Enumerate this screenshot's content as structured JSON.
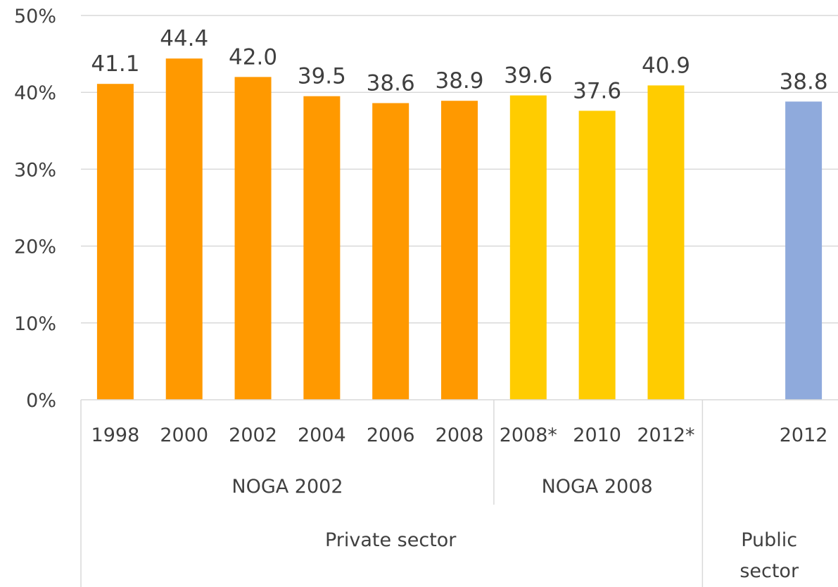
{
  "chart_data": {
    "type": "bar",
    "ylim": [
      0,
      50
    ],
    "y_ticks": [
      "0%",
      "10%",
      "20%",
      "30%",
      "40%",
      "50%"
    ],
    "grid": true,
    "categories": [
      "1998",
      "2000",
      "2002",
      "2004",
      "2006",
      "2008",
      "2008*",
      "2010",
      "2012*",
      "",
      "2012"
    ],
    "values": [
      41.1,
      44.4,
      42.0,
      39.5,
      38.6,
      38.9,
      39.6,
      37.6,
      40.9,
      null,
      38.8
    ],
    "data_labels": [
      "41.1",
      "44.4",
      "42.0",
      "39.5",
      "38.6",
      "38.9",
      "39.6",
      "37.6",
      "40.9",
      "",
      "38.8"
    ],
    "bar_colors": [
      "#ff9900",
      "#ff9900",
      "#ff9900",
      "#ff9900",
      "#ff9900",
      "#ff9900",
      "#ffcc00",
      "#ffcc00",
      "#ffcc00",
      "#ffffff",
      "#8faadc"
    ],
    "groups_level2": [
      {
        "label": "NOGA 2002",
        "from": 0,
        "to": 5
      },
      {
        "label": "NOGA 2008",
        "from": 6,
        "to": 8
      },
      {
        "label": "",
        "from": 9,
        "to": 10
      }
    ],
    "groups_level3": [
      {
        "label": "Private sector",
        "from": 0,
        "to": 8
      },
      {
        "label": "Public sector",
        "from": 9,
        "to": 10
      }
    ]
  },
  "colors": {
    "grid": "#d9d9d9",
    "text": "#404040"
  }
}
